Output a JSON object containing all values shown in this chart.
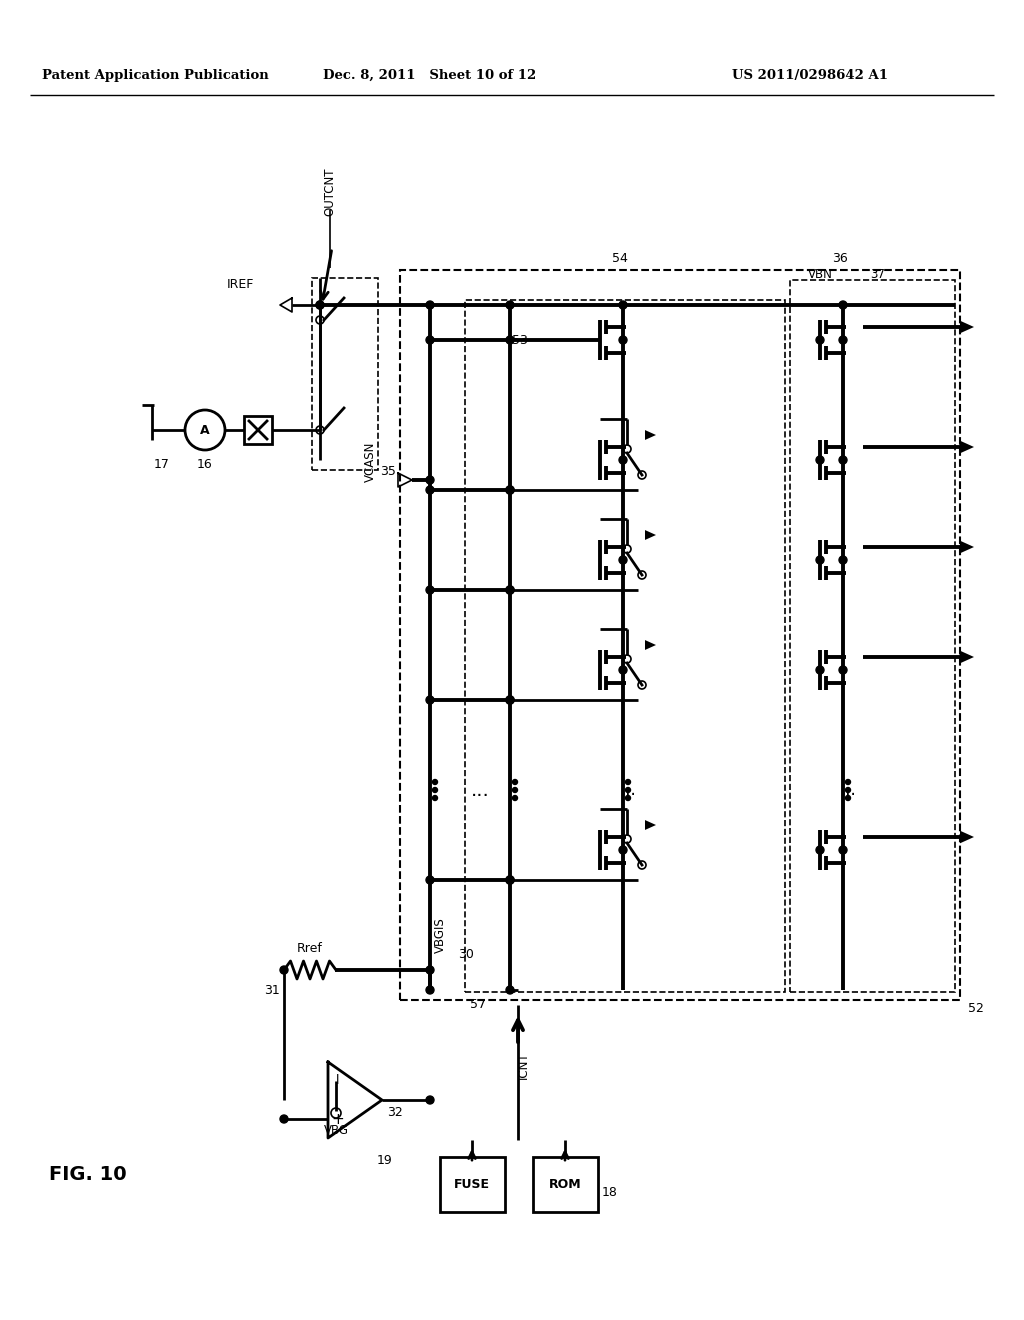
{
  "title_left": "Patent Application Publication",
  "title_center": "Dec. 8, 2011   Sheet 10 of 12",
  "title_right": "US 2011/0298642 A1",
  "fig_label": "FIG. 10",
  "bg_color": "#ffffff"
}
